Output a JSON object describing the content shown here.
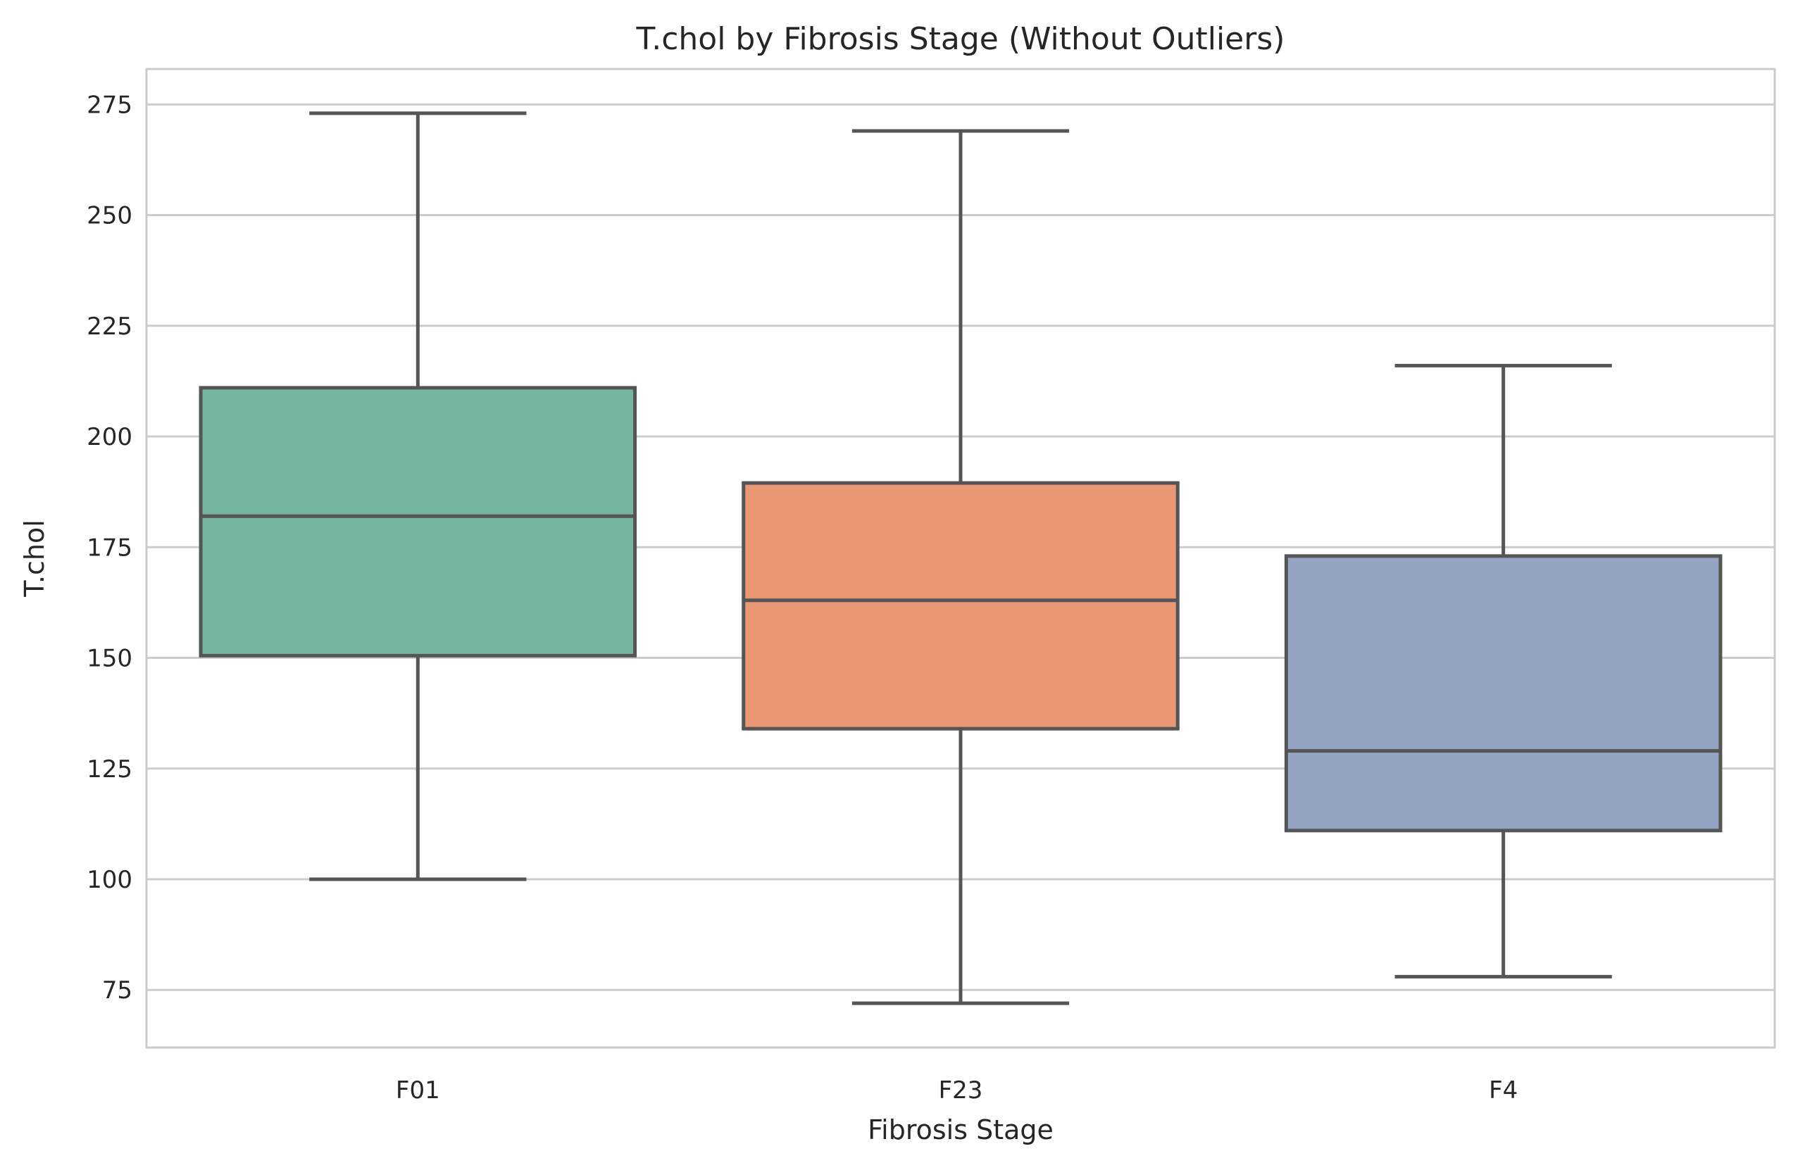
{
  "chart_data": {
    "type": "box",
    "title": "T.chol by Fibrosis Stage (Without Outliers)",
    "xlabel": "Fibrosis Stage",
    "ylabel": "T.chol",
    "categories": [
      "F01",
      "F23",
      "F4"
    ],
    "ylim": [
      62,
      283
    ],
    "yticks": [
      75,
      100,
      125,
      150,
      175,
      200,
      225,
      250,
      275
    ],
    "grid": true,
    "boxes": [
      {
        "category": "F01",
        "whisker_low": 100,
        "q1": 150.5,
        "median": 182,
        "q3": 211,
        "whisker_high": 273,
        "color": "#76b5a0"
      },
      {
        "category": "F23",
        "whisker_low": 72,
        "q1": 134,
        "median": 163,
        "q3": 189.5,
        "whisker_high": 269,
        "color": "#e99675"
      },
      {
        "category": "F4",
        "whisker_low": 78,
        "q1": 111,
        "median": 129,
        "q3": 173,
        "whisker_high": 216,
        "color": "#95a4c2"
      }
    ],
    "colors": {
      "grid": "#cccccc",
      "spine": "#cccccc",
      "box_line": "#555555",
      "text": "#262626"
    }
  }
}
